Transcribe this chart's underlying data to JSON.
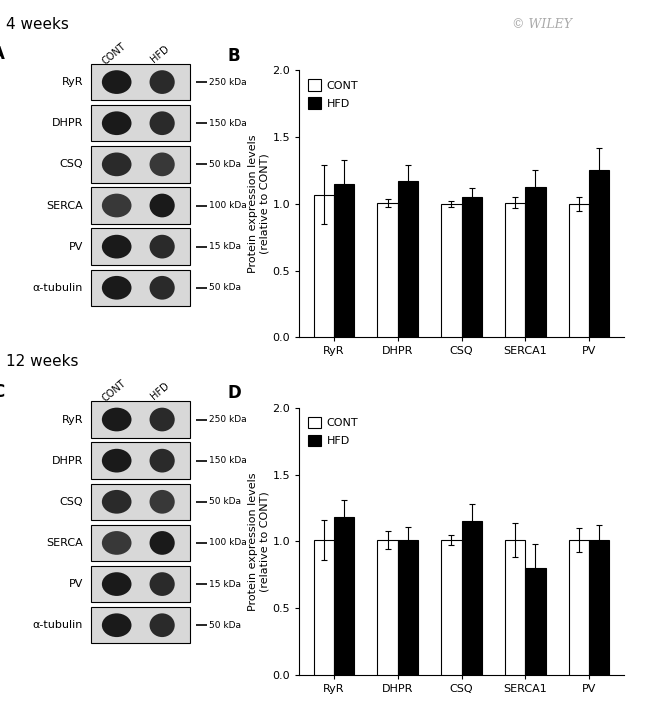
{
  "panel_B": {
    "categories": [
      "RyR",
      "DHPR",
      "CSQ",
      "SERCA1",
      "PV"
    ],
    "cont_values": [
      1.07,
      1.01,
      1.0,
      1.01,
      1.0
    ],
    "hfd_values": [
      1.15,
      1.17,
      1.05,
      1.13,
      1.25
    ],
    "cont_errors": [
      0.22,
      0.03,
      0.02,
      0.04,
      0.05
    ],
    "hfd_errors": [
      0.18,
      0.12,
      0.07,
      0.12,
      0.17
    ],
    "ylabel": "Protein expression levels\n(relative to CONT)",
    "ylim": [
      0.0,
      2.0
    ],
    "yticks": [
      0.0,
      0.5,
      1.0,
      1.5,
      2.0
    ]
  },
  "panel_D": {
    "categories": [
      "RyR",
      "DHPR",
      "CSQ",
      "SERCA1",
      "PV"
    ],
    "cont_values": [
      1.01,
      1.01,
      1.01,
      1.01,
      1.01
    ],
    "hfd_values": [
      1.18,
      1.01,
      1.15,
      0.8,
      1.01
    ],
    "cont_errors": [
      0.15,
      0.07,
      0.04,
      0.13,
      0.09
    ],
    "hfd_errors": [
      0.13,
      0.1,
      0.13,
      0.18,
      0.11
    ],
    "ylabel": "Protein expression levels\n(relative to CONT)",
    "ylim": [
      0.0,
      2.0
    ],
    "yticks": [
      0.0,
      0.5,
      1.0,
      1.5,
      2.0
    ]
  },
  "panel_A": {
    "panel_label": "A",
    "labels": [
      "RyR",
      "DHPR",
      "CSQ",
      "SERCA",
      "PV",
      "α-tubulin"
    ],
    "kda_labels": [
      "250 kDa",
      "150 kDa",
      "50 kDa",
      "100 kDa",
      "15 kDa",
      "50 kDa"
    ],
    "kda_at_bottom": [
      true,
      false,
      true,
      false,
      true,
      false
    ],
    "band_darkness": [
      [
        "#1a1a1a",
        "#2a2a2a"
      ],
      [
        "#1a1a1a",
        "#2a2a2a"
      ],
      [
        "#2a2a2a",
        "#383838"
      ],
      [
        "#383838",
        "#1a1a1a"
      ],
      [
        "#1a1a1a",
        "#2a2a2a"
      ],
      [
        "#1a1a1a",
        "#2a2a2a"
      ]
    ]
  },
  "panel_C": {
    "panel_label": "C",
    "labels": [
      "RyR",
      "DHPR",
      "CSQ",
      "SERCA",
      "PV",
      "α-tubulin"
    ],
    "kda_labels": [
      "250 kDa",
      "150 kDa",
      "50 kDa",
      "100 kDa",
      "15 kDa",
      "50 kDa"
    ],
    "kda_at_bottom": [
      true,
      false,
      true,
      false,
      true,
      false
    ],
    "band_darkness": [
      [
        "#1a1a1a",
        "#2a2a2a"
      ],
      [
        "#1a1a1a",
        "#2a2a2a"
      ],
      [
        "#2a2a2a",
        "#383838"
      ],
      [
        "#383838",
        "#1a1a1a"
      ],
      [
        "#1a1a1a",
        "#2a2a2a"
      ],
      [
        "#1a1a1a",
        "#2a2a2a"
      ]
    ]
  },
  "bar_width": 0.32,
  "cont_color": "#ffffff",
  "hfd_color": "#000000",
  "bar_edge_color": "#000000",
  "bg_color": "#ffffff",
  "title_4weeks": "4 weeks",
  "title_12weeks": "12 weeks",
  "watermark": "© WILEY"
}
